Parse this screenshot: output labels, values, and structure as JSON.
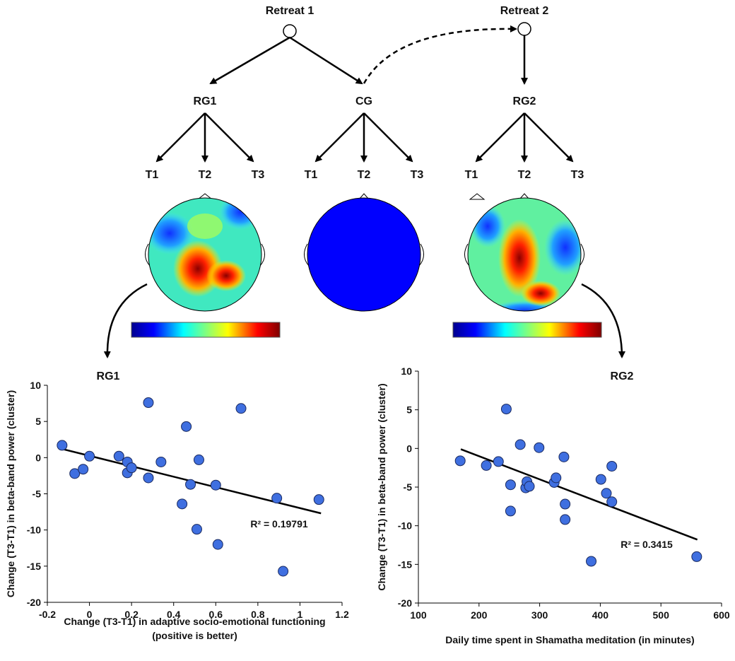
{
  "diagram": {
    "retreats": [
      "Retreat 1",
      "Retreat 2"
    ],
    "groups": [
      "RG1",
      "CG",
      "RG2"
    ],
    "timepoints": [
      [
        "T1",
        "T2",
        "T3"
      ],
      [
        "T1",
        "T2",
        "T3"
      ],
      [
        "T1",
        "T2",
        "T3"
      ]
    ]
  },
  "chart_data": [
    {
      "type": "scatter",
      "title": "RG1",
      "ylabel": "Change (T3-T1) in beta-band power (cluster)",
      "xlabel": [
        "Change (T3-T1) in adaptive socio-emotional functioning",
        "(positive is better)"
      ],
      "annotation": "R² = 0.19791",
      "color": "#3f6fe0",
      "x": [
        -0.13,
        -0.07,
        -0.03,
        0.0,
        0.14,
        0.18,
        0.18,
        0.2,
        0.28,
        0.28,
        0.34,
        0.44,
        0.46,
        0.48,
        0.51,
        0.52,
        0.6,
        0.61,
        0.72,
        0.89,
        0.92,
        1.09
      ],
      "values": [
        1.7,
        -2.2,
        -1.6,
        0.2,
        0.2,
        -0.6,
        -2.1,
        -1.4,
        7.6,
        -2.8,
        -0.6,
        -6.4,
        4.3,
        -3.7,
        -9.9,
        -0.3,
        -3.8,
        -12,
        6.8,
        -5.6,
        -15.7,
        -5.8
      ],
      "trendline": {
        "x": [
          -0.13,
          1.1
        ],
        "y": [
          1.2,
          -7.7
        ]
      },
      "xlim": [
        -0.2,
        1.2
      ],
      "xticks": [
        -0.2,
        0,
        0.2,
        0.4,
        0.6,
        0.8,
        1,
        1.2
      ],
      "ylim": [
        -20,
        10
      ],
      "yticks": [
        -20,
        -15,
        -10,
        -5,
        0,
        5,
        10
      ]
    },
    {
      "type": "scatter",
      "title": "RG2",
      "ylabel": "Change (T3-T1) in beta-band power (cluster)",
      "xlabel": [
        "Daily time spent in Shamatha meditation (in minutes)"
      ],
      "annotation": "R² = 0.3415",
      "color": "#3f6fe0",
      "x": [
        169,
        212,
        232,
        245,
        252,
        252,
        268,
        277,
        279,
        283,
        299,
        324,
        327,
        340,
        342,
        342,
        385,
        401,
        410,
        419,
        419,
        559
      ],
      "values": [
        -1.6,
        -2.2,
        -1.7,
        5.1,
        -4.7,
        -8.1,
        0.5,
        -5.1,
        -4.3,
        -4.9,
        0.1,
        -4.4,
        -3.8,
        -1.1,
        -7.2,
        -9.2,
        -14.6,
        -4.0,
        -5.8,
        -2.3,
        -6.9,
        -14.0
      ],
      "trendline": {
        "x": [
          170,
          560
        ],
        "y": [
          -0.1,
          -11.8
        ]
      },
      "xlim": [
        100,
        600
      ],
      "xticks": [
        100,
        200,
        300,
        400,
        500,
        600
      ],
      "ylim": [
        -20,
        10
      ],
      "yticks": [
        -20,
        -15,
        -10,
        -5,
        0,
        5,
        10
      ]
    }
  ]
}
